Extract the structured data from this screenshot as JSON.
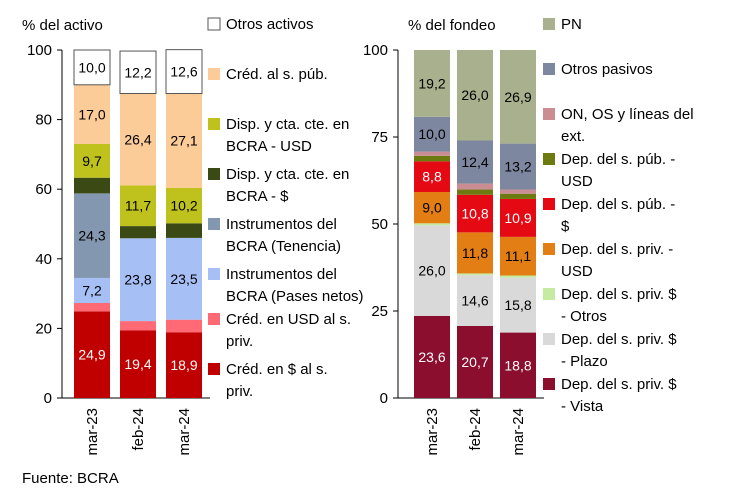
{
  "source": "Fuente: BCRA",
  "chart_data": [
    {
      "type": "bar",
      "stacked": true,
      "ylabel": "% del activo",
      "ylim": [
        0,
        100
      ],
      "yticks": [
        0,
        20,
        40,
        60,
        80,
        100
      ],
      "categories": [
        "mar-23",
        "feb-24",
        "mar-24"
      ],
      "legend_placement": "right",
      "series": [
        {
          "name": "Créd. en $ al s. priv.",
          "color": "#c00000",
          "values": [
            24.9,
            19.4,
            18.9
          ],
          "labels": [
            "24,9",
            "19,4",
            "18,9"
          ],
          "label_color": "#ffffff"
        },
        {
          "name": "Créd. en USD al s. priv.",
          "color": "#ff6a75",
          "values": [
            2.4,
            2.7,
            3.6
          ],
          "labels": [
            "",
            "",
            ""
          ],
          "label_color": "#000000"
        },
        {
          "name": "Instrumentos del BCRA (Pases netos)",
          "color": "#a6bff5",
          "values": [
            7.2,
            23.8,
            23.5
          ],
          "labels": [
            "7,2",
            "23,8",
            "23,5"
          ],
          "label_color": "#000000"
        },
        {
          "name": "Instrumentos del BCRA (Tenencia)",
          "color": "#8497b0",
          "values": [
            24.3,
            0,
            0
          ],
          "labels": [
            "24,3",
            "",
            ""
          ],
          "label_color": "#000000"
        },
        {
          "name": "Disp. y cta. cte. en BCRA - $",
          "color": "#3b4a15",
          "values": [
            4.5,
            3.5,
            4.2
          ],
          "labels": [
            "",
            "",
            ""
          ],
          "label_color": "#ffffff"
        },
        {
          "name": "Disp. y cta. cte. en BCRA - USD",
          "color": "#bfc21c",
          "values": [
            9.7,
            11.7,
            10.2
          ],
          "labels": [
            "9,7",
            "11,7",
            "10,2"
          ],
          "label_color": "#000000"
        },
        {
          "name": "Créd. al s. púb.",
          "color": "#fbcb98",
          "values": [
            17.0,
            26.4,
            27.1
          ],
          "labels": [
            "17,0",
            "26,4",
            "27,1"
          ],
          "label_color": "#000000"
        },
        {
          "name": "Otros activos",
          "color": "#ffffff",
          "values": [
            10.0,
            12.2,
            12.6
          ],
          "labels": [
            "10,0",
            "12,2",
            "12,6"
          ],
          "label_color": "#000000"
        }
      ],
      "legend": [
        {
          "text": "Otros activos",
          "color": "#ffffff"
        },
        {
          "text": "Créd. al s. púb.",
          "color": "#fbcb98"
        },
        {
          "text": "Disp. y cta. cte. en BCRA - USD",
          "color": "#bfc21c"
        },
        {
          "text": "Disp. y cta. cte. en BCRA - $",
          "color": "#3b4a15"
        },
        {
          "text": "Instrumentos del BCRA (Tenencia)",
          "color": "#8497b0"
        },
        {
          "text": "Instrumentos del BCRA (Pases netos)",
          "color": "#a6bff5"
        },
        {
          "text": "Créd. en USD al s. priv.",
          "color": "#ff6a75"
        },
        {
          "text": "Créd. en $ al s. priv.",
          "color": "#c00000"
        }
      ]
    },
    {
      "type": "bar",
      "stacked": true,
      "ylabel": "% del fondeo",
      "ylim": [
        0,
        100
      ],
      "yticks": [
        0,
        25,
        50,
        75,
        100
      ],
      "categories": [
        "mar-23",
        "feb-24",
        "mar-24"
      ],
      "legend_placement": "right",
      "series": [
        {
          "name": "Dep. del s. priv. $ - Vista",
          "color": "#8b0e2e",
          "values": [
            23.6,
            20.7,
            18.8
          ],
          "labels": [
            "23,6",
            "20,7",
            "18,8"
          ],
          "label_color": "#ffffff"
        },
        {
          "name": "Dep. del s. priv. $ - Plazo",
          "color": "#d9d9d9",
          "values": [
            26.0,
            14.6,
            15.8
          ],
          "labels": [
            "26,0",
            "14,6",
            "15,8"
          ],
          "label_color": "#000000"
        },
        {
          "name": "Dep. del s. priv. $ - Otros",
          "color": "#c5eaa0",
          "values": [
            0.6,
            0.5,
            0.6
          ],
          "labels": [
            "",
            "",
            ""
          ],
          "label_color": "#000000"
        },
        {
          "name": "Dep. del s. priv. - USD",
          "color": "#e37e14",
          "values": [
            9.0,
            11.8,
            11.1
          ],
          "labels": [
            "9,0",
            "11,8",
            "11,1"
          ],
          "label_color": "#000000"
        },
        {
          "name": "Dep. del s. púb. - $",
          "color": "#e50914",
          "values": [
            8.8,
            10.8,
            10.9
          ],
          "labels": [
            "8,8",
            "10,8",
            "10,9"
          ],
          "label_color": "#ffffff"
        },
        {
          "name": "Dep. del s. púb. - USD",
          "color": "#6d7a10",
          "values": [
            1.6,
            1.5,
            1.5
          ],
          "labels": [
            "",
            "",
            ""
          ],
          "label_color": "#000000"
        },
        {
          "name": "ON, OS y líneas del ext.",
          "color": "#c98d93",
          "values": [
            1.2,
            1.7,
            1.2
          ],
          "labels": [
            "",
            "",
            ""
          ],
          "label_color": "#000000"
        },
        {
          "name": "Otros pasivos",
          "color": "#7d879f",
          "values": [
            10.0,
            12.4,
            13.2
          ],
          "labels": [
            "10,0",
            "12,4",
            "13,2"
          ],
          "label_color": "#000000"
        },
        {
          "name": "PN",
          "color": "#a9b08d",
          "values": [
            19.2,
            26.0,
            26.9
          ],
          "labels": [
            "19,2",
            "26,0",
            "26,9"
          ],
          "label_color": "#000000"
        }
      ],
      "legend": [
        {
          "text": "PN",
          "color": "#a9b08d"
        },
        {
          "text": "Otros pasivos",
          "color": "#7d879f"
        },
        {
          "text": "ON, OS y líneas del ext.",
          "color": "#c98d93"
        },
        {
          "text": "Dep. del s. púb. - USD",
          "color": "#6d7a10"
        },
        {
          "text": "Dep. del s. púb. - $",
          "color": "#e50914"
        },
        {
          "text": "Dep. del s. priv. - USD",
          "color": "#e37e14"
        },
        {
          "text": "Dep. del s. priv. $ - Otros",
          "color": "#c5eaa0"
        },
        {
          "text": "Dep. del s. priv. $ - Plazo",
          "color": "#d9d9d9"
        },
        {
          "text": "Dep. del s. priv. $ - Vista",
          "color": "#8b0e2e"
        }
      ]
    }
  ]
}
